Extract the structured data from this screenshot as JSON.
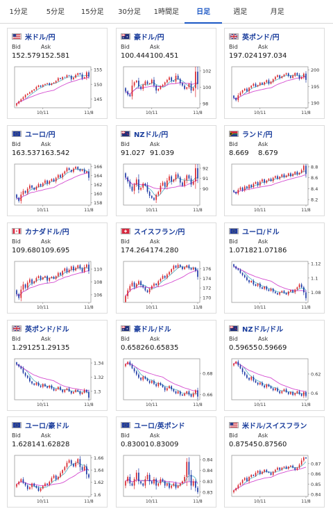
{
  "tabs": [
    {
      "label": "1分足",
      "active": false
    },
    {
      "label": "5分足",
      "active": false
    },
    {
      "label": "15分足",
      "active": false
    },
    {
      "label": "30分足",
      "active": false
    },
    {
      "label": "1時間足",
      "active": false
    },
    {
      "label": "日足",
      "active": true
    },
    {
      "label": "週足",
      "active": false
    },
    {
      "label": "月足",
      "active": false
    }
  ],
  "labels": {
    "bid": "Bid",
    "ask": "Ask"
  },
  "pairs": [
    {
      "name": "米ドル/円",
      "flag": "us",
      "bid": "152.579",
      "ask": "152.581",
      "chart_data": {
        "type": "candlestick",
        "x_ticks": [
          "10/11",
          "11/8"
        ],
        "y_ticks": [
          "155",
          "150",
          "145"
        ],
        "ylim": [
          142,
          156
        ],
        "closes": [
          143.5,
          144.2,
          144.9,
          145.6,
          146.4,
          146.8,
          147.3,
          147.9,
          148.3,
          149.1,
          149.6,
          149.2,
          149.8,
          150.1,
          150.4,
          149.8,
          150.3,
          150.6,
          151.2,
          152.1,
          151.8,
          152.5,
          152.4,
          153.1,
          152.9,
          151.7,
          152.3,
          153.2,
          153.8,
          153.4,
          152.0,
          152.4,
          154.1,
          152.6
        ]
      }
    },
    {
      "name": "豪ドル/円",
      "flag": "au",
      "bid": "100.444",
      "ask": "100.451",
      "chart_data": {
        "type": "candlestick",
        "x_ticks": [
          "10/11",
          "11/8"
        ],
        "y_ticks": [
          "102",
          "100",
          "98"
        ],
        "ylim": [
          97.5,
          102.5
        ],
        "closes": [
          99.5,
          99.1,
          98.9,
          100.2,
          100.6,
          100.8,
          100.1,
          99.8,
          100.3,
          100.7,
          100.4,
          100.5,
          100.9,
          100.2,
          99.6,
          99.8,
          100.1,
          100.3,
          100.6,
          100.9,
          101.2,
          100.8,
          100.7,
          101.4,
          101.0,
          100.5,
          100.2,
          99.8,
          100.0,
          100.4,
          99.6,
          99.9,
          101.9,
          100.4
        ]
      }
    },
    {
      "name": "英ポンド/円",
      "flag": "gb",
      "bid": "197.024",
      "ask": "197.034",
      "chart_data": {
        "type": "candlestick",
        "x_ticks": [
          "10/11",
          "11/8"
        ],
        "y_ticks": [
          "200",
          "195",
          "190"
        ],
        "ylim": [
          188.5,
          201
        ],
        "closes": [
          191.5,
          190.8,
          192.3,
          193.1,
          193.8,
          194.3,
          193.5,
          194.6,
          195.2,
          195.8,
          195.0,
          195.4,
          196.1,
          195.6,
          196.3,
          196.9,
          195.8,
          196.4,
          197.2,
          197.9,
          198.4,
          197.6,
          198.1,
          198.6,
          199.0,
          198.2,
          197.6,
          198.3,
          199.1,
          198.5,
          197.3,
          197.8,
          198.9,
          197.0
        ]
      }
    },
    {
      "name": "ユーロ/円",
      "flag": "eu",
      "bid": "163.537",
      "ask": "163.542",
      "chart_data": {
        "type": "candlestick",
        "x_ticks": [
          "10/11",
          "11/8"
        ],
        "y_ticks": [
          "166",
          "164",
          "162",
          "160",
          "158"
        ],
        "ylim": [
          157.5,
          166.5
        ],
        "closes": [
          159.1,
          158.4,
          159.8,
          160.6,
          160.2,
          161.1,
          161.8,
          161.3,
          160.9,
          161.5,
          162.1,
          161.7,
          162.3,
          162.9,
          162.2,
          162.8,
          163.2,
          162.7,
          163.5,
          164.1,
          163.6,
          164.4,
          164.9,
          165.6,
          165.2,
          164.8,
          165.5,
          165.9,
          165.4,
          165.0,
          165.3,
          164.6,
          164.9,
          163.5
        ]
      }
    },
    {
      "name": "NZドル/円",
      "flag": "nz",
      "bid": "91.027",
      "ask": "91.039",
      "chart_data": {
        "type": "candlestick",
        "x_ticks": [
          "10/11",
          "11/8"
        ],
        "y_ticks": [
          "92",
          "91",
          "90"
        ],
        "ylim": [
          88.4,
          92.4
        ],
        "closes": [
          91.1,
          90.7,
          90.2,
          89.8,
          90.4,
          90.9,
          89.9,
          90.1,
          90.5,
          90.3,
          89.7,
          89.3,
          89.1,
          88.9,
          89.4,
          89.7,
          90.3,
          90.6,
          90.2,
          90.8,
          91.2,
          90.7,
          90.9,
          91.4,
          91.1,
          90.6,
          90.3,
          90.8,
          91.3,
          91.0,
          90.4,
          90.7,
          92.0,
          91.0
        ]
      }
    },
    {
      "name": "ランド/円",
      "flag": "za",
      "bid": "8.669",
      "ask": "8.679",
      "chart_data": {
        "type": "candlestick",
        "x_ticks": [
          "10/11",
          "11/8"
        ],
        "y_ticks": [
          "8.8",
          "8.6",
          "8.4",
          "8.2"
        ],
        "ylim": [
          8.1,
          8.85
        ],
        "closes": [
          8.34,
          8.31,
          8.38,
          8.42,
          8.37,
          8.44,
          8.41,
          8.47,
          8.43,
          8.49,
          8.52,
          8.46,
          8.53,
          8.57,
          8.51,
          8.55,
          8.58,
          8.54,
          8.6,
          8.63,
          8.58,
          8.62,
          8.66,
          8.61,
          8.64,
          8.68,
          8.63,
          8.67,
          8.71,
          8.66,
          8.69,
          8.74,
          8.82,
          8.67
        ]
      }
    },
    {
      "name": "カナダドル/円",
      "flag": "ca",
      "bid": "109.680",
      "ask": "109.695",
      "chart_data": {
        "type": "candlestick",
        "x_ticks": [
          "10/11",
          "11/8"
        ],
        "y_ticks": [
          "110",
          "108",
          "106"
        ],
        "ylim": [
          104.8,
          111.2
        ],
        "closes": [
          106.1,
          105.5,
          106.8,
          107.6,
          107.1,
          107.9,
          108.4,
          107.8,
          108.1,
          108.6,
          108.9,
          108.4,
          108.7,
          108.9,
          108.2,
          108.6,
          108.8,
          108.5,
          108.9,
          109.4,
          109.1,
          109.7,
          110.1,
          109.5,
          109.9,
          110.4,
          109.8,
          110.2,
          110.6,
          110.1,
          109.6,
          110.3,
          110.7,
          109.7
        ]
      }
    },
    {
      "name": "スイスフラン/円",
      "flag": "ch",
      "bid": "174.264",
      "ask": "174.280",
      "chart_data": {
        "type": "candlestick",
        "x_ticks": [
          "10/11",
          "11/8"
        ],
        "y_ticks": [
          "176",
          "174",
          "172",
          "170"
        ],
        "ylim": [
          169,
          177.5
        ],
        "closes": [
          170.3,
          171.5,
          172.4,
          173.1,
          172.2,
          172.8,
          173.4,
          172.6,
          172.1,
          171.5,
          171.1,
          171.8,
          172.4,
          172.9,
          172.6,
          173.4,
          173.9,
          174.5,
          174.1,
          174.8,
          175.3,
          175.9,
          176.6,
          176.2,
          176.8,
          176.4,
          175.9,
          176.3,
          176.7,
          176.1,
          175.8,
          176.2,
          175.6,
          174.3
        ]
      }
    },
    {
      "name": "ユーロ/ドル",
      "flag": "eu",
      "bid": "1.07182",
      "ask": "1.07186",
      "chart_data": {
        "type": "candlestick",
        "x_ticks": [
          "10/11",
          "11/8"
        ],
        "y_ticks": [
          "1.12",
          "1.1",
          "1.08"
        ],
        "ylim": [
          1.066,
          1.123
        ],
        "closes": [
          1.116,
          1.113,
          1.111,
          1.107,
          1.104,
          1.101,
          1.097,
          1.094,
          1.096,
          1.091,
          1.089,
          1.092,
          1.087,
          1.085,
          1.088,
          1.084,
          1.082,
          1.085,
          1.081,
          1.079,
          1.077,
          1.08,
          1.082,
          1.079,
          1.077,
          1.081,
          1.083,
          1.08,
          1.084,
          1.087,
          1.091,
          1.087,
          1.08,
          1.072
        ]
      }
    },
    {
      "name": "英ポンド/ドル",
      "flag": "gb",
      "bid": "1.29125",
      "ask": "1.29135",
      "chart_data": {
        "type": "candlestick",
        "x_ticks": [
          "10/11",
          "11/8"
        ],
        "y_ticks": [
          "1.34",
          "1.32",
          "1.3"
        ],
        "ylim": [
          1.288,
          1.346
        ],
        "closes": [
          1.338,
          1.335,
          1.332,
          1.326,
          1.322,
          1.319,
          1.314,
          1.311,
          1.309,
          1.312,
          1.308,
          1.306,
          1.31,
          1.307,
          1.305,
          1.308,
          1.304,
          1.301,
          1.303,
          1.306,
          1.302,
          1.299,
          1.302,
          1.304,
          1.3,
          1.297,
          1.299,
          1.302,
          1.3,
          1.296,
          1.298,
          1.302,
          1.299,
          1.291
        ]
      }
    },
    {
      "name": "豪ドル/ドル",
      "flag": "au",
      "bid": "0.65826",
      "ask": "0.65835",
      "chart_data": {
        "type": "candlestick",
        "x_ticks": [
          "10/11",
          "11/8"
        ],
        "y_ticks": [
          "0.68",
          "0.66"
        ],
        "ylim": [
          0.655,
          0.694
        ],
        "closes": [
          0.689,
          0.691,
          0.688,
          0.685,
          0.682,
          0.679,
          0.676,
          0.674,
          0.677,
          0.675,
          0.673,
          0.671,
          0.673,
          0.67,
          0.668,
          0.671,
          0.669,
          0.667,
          0.664,
          0.666,
          0.668,
          0.665,
          0.663,
          0.661,
          0.663,
          0.66,
          0.659,
          0.661,
          0.663,
          0.66,
          0.658,
          0.661,
          0.664,
          0.658
        ]
      }
    },
    {
      "name": "NZドル/ドル",
      "flag": "nz",
      "bid": "0.59655",
      "ask": "0.59669",
      "chart_data": {
        "type": "candlestick",
        "x_ticks": [
          "10/11",
          "11/8"
        ],
        "y_ticks": [
          "0.62",
          "0.6"
        ],
        "ylim": [
          0.593,
          0.636
        ],
        "closes": [
          0.631,
          0.633,
          0.629,
          0.626,
          0.622,
          0.619,
          0.616,
          0.614,
          0.617,
          0.613,
          0.611,
          0.609,
          0.611,
          0.608,
          0.606,
          0.609,
          0.607,
          0.605,
          0.603,
          0.605,
          0.602,
          0.6,
          0.602,
          0.604,
          0.601,
          0.599,
          0.601,
          0.598,
          0.6,
          0.602,
          0.599,
          0.597,
          0.601,
          0.597
        ]
      }
    },
    {
      "name": "ユーロ/豪ドル",
      "flag": "eu",
      "bid": "1.62814",
      "ask": "1.62828",
      "chart_data": {
        "type": "candlestick",
        "x_ticks": [
          "10/11",
          "11/8"
        ],
        "y_ticks": [
          "1.66",
          "1.64",
          "1.62",
          "1.6"
        ],
        "ylim": [
          1.597,
          1.664
        ],
        "closes": [
          1.617,
          1.621,
          1.625,
          1.619,
          1.615,
          1.609,
          1.612,
          1.618,
          1.614,
          1.611,
          1.606,
          1.61,
          1.614,
          1.618,
          1.616,
          1.621,
          1.627,
          1.631,
          1.625,
          1.629,
          1.635,
          1.64,
          1.645,
          1.652,
          1.656,
          1.65,
          1.646,
          1.652,
          1.658,
          1.645,
          1.64,
          1.646,
          1.633,
          1.628
        ]
      }
    },
    {
      "name": "ユーロ/英ポンド",
      "flag": "eu",
      "bid": "0.83001",
      "ask": "0.83009",
      "chart_data": {
        "type": "candlestick",
        "x_ticks": [
          "10/11",
          "11/8"
        ],
        "y_ticks": [
          "0.845",
          "0.84",
          "0.835",
          "0.83"
        ],
        "ylim": [
          0.828,
          0.847
        ],
        "closes": [
          0.835,
          0.837,
          0.834,
          0.833,
          0.836,
          0.839,
          0.835,
          0.834,
          0.833,
          0.836,
          0.838,
          0.835,
          0.834,
          0.836,
          0.833,
          0.834,
          0.836,
          0.835,
          0.833,
          0.834,
          0.832,
          0.833,
          0.834,
          0.832,
          0.833,
          0.834,
          0.835,
          0.837,
          0.844,
          0.838,
          0.833,
          0.835,
          0.832,
          0.83
        ]
      }
    },
    {
      "name": "米ドル/スイスフラン",
      "flag": "us",
      "bid": "0.87545",
      "ask": "0.87560",
      "chart_data": {
        "type": "candlestick",
        "x_ticks": [
          "10/11",
          "11/8"
        ],
        "y_ticks": [
          "0.87",
          "0.86",
          "0.85",
          "0.84"
        ],
        "ylim": [
          0.838,
          0.878
        ],
        "closes": [
          0.844,
          0.846,
          0.849,
          0.851,
          0.854,
          0.856,
          0.853,
          0.857,
          0.859,
          0.858,
          0.861,
          0.863,
          0.86,
          0.862,
          0.864,
          0.862,
          0.861,
          0.859,
          0.862,
          0.864,
          0.866,
          0.864,
          0.866,
          0.867,
          0.865,
          0.867,
          0.868,
          0.866,
          0.864,
          0.866,
          0.869,
          0.873,
          0.876,
          0.875
        ]
      }
    }
  ]
}
